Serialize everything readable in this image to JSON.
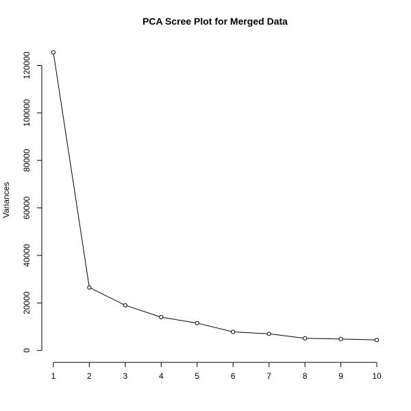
{
  "chart_data": {
    "type": "line",
    "title": "PCA Scree Plot for Merged Data",
    "xlabel": "",
    "ylabel": "Variances",
    "x": [
      1,
      2,
      3,
      4,
      5,
      6,
      7,
      8,
      9,
      10
    ],
    "series": [
      {
        "name": "Variances",
        "values": [
          125500,
          26500,
          19000,
          14000,
          11500,
          7800,
          7000,
          5100,
          4800,
          4400
        ]
      }
    ],
    "x_ticks": [
      "1",
      "2",
      "3",
      "4",
      "5",
      "6",
      "7",
      "8",
      "9",
      "10"
    ],
    "y_ticks": [
      "0",
      "20000",
      "40000",
      "60000",
      "80000",
      "100000",
      "120000"
    ],
    "xlim": [
      0.64,
      10.36
    ],
    "ylim": [
      -5020,
      130520
    ],
    "grid": false,
    "line_color": "#000000",
    "marker": "open-circle"
  }
}
